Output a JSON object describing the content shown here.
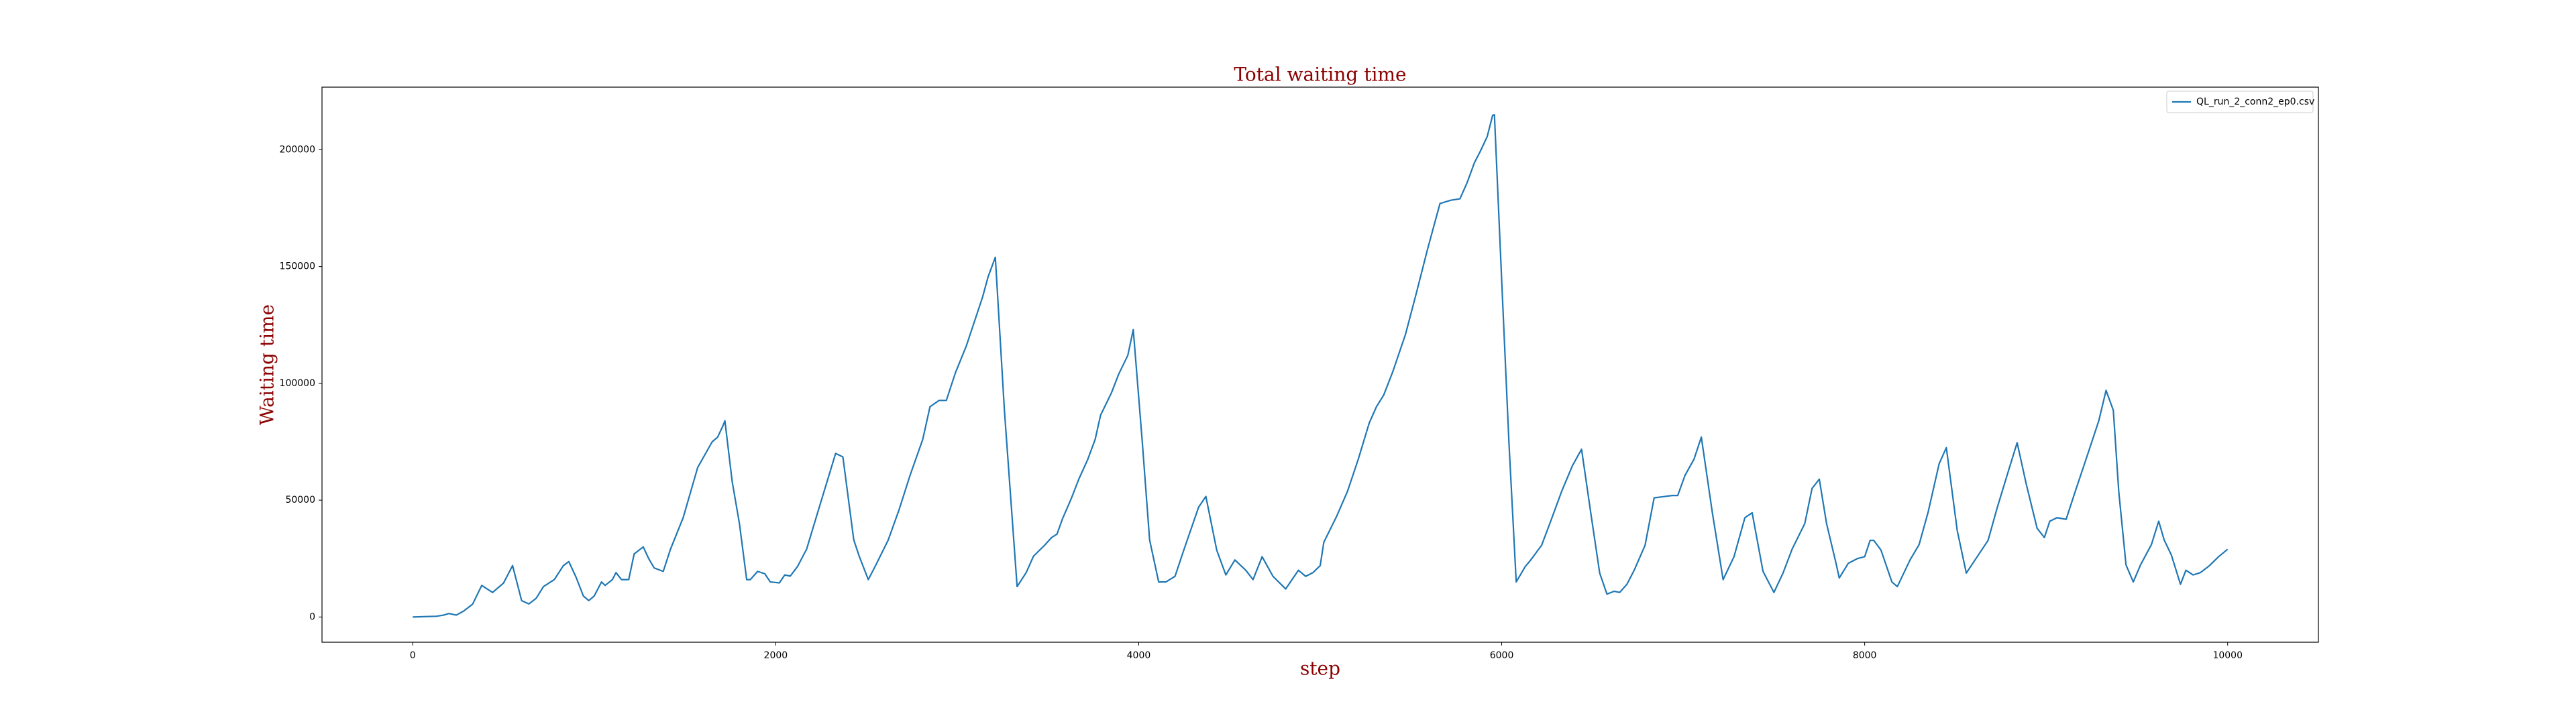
{
  "chart_data": {
    "type": "line",
    "title": "Total waiting time",
    "xlabel": "step",
    "ylabel": "Waiting time",
    "x": [
      0,
      130,
      170,
      200,
      240,
      280,
      330,
      380,
      440,
      500,
      550,
      600,
      640,
      680,
      720,
      780,
      830,
      860,
      900,
      940,
      970,
      1000,
      1040,
      1060,
      1100,
      1120,
      1150,
      1190,
      1220,
      1270,
      1300,
      1330,
      1380,
      1420,
      1490,
      1570,
      1650,
      1680,
      1710,
      1720,
      1760,
      1800,
      1840,
      1860,
      1900,
      1940,
      1970,
      2020,
      2050,
      2080,
      2120,
      2170,
      2240,
      2330,
      2370,
      2430,
      2460,
      2510,
      2550,
      2620,
      2680,
      2740,
      2810,
      2850,
      2900,
      2940,
      2990,
      3050,
      3110,
      3140,
      3170,
      3210,
      3260,
      3330,
      3380,
      3420,
      3480,
      3520,
      3550,
      3580,
      3630,
      3670,
      3720,
      3760,
      3790,
      3850,
      3890,
      3940,
      3970,
      4020,
      4060,
      4110,
      4150,
      4200,
      4250,
      4330,
      4370,
      4430,
      4480,
      4530,
      4590,
      4630,
      4680,
      4740,
      4810,
      4880,
      4920,
      4960,
      5000,
      5020,
      5090,
      5150,
      5210,
      5270,
      5310,
      5350,
      5400,
      5470,
      5530,
      5590,
      5660,
      5720,
      5770,
      5810,
      5850,
      5880,
      5920,
      5950,
      5960,
      6000,
      6040,
      6080,
      6130,
      6160,
      6220,
      6270,
      6330,
      6390,
      6440,
      6490,
      6540,
      6580,
      6620,
      6650,
      6690,
      6730,
      6790,
      6840,
      6900,
      6940,
      6970,
      7010,
      7060,
      7100,
      7160,
      7220,
      7280,
      7340,
      7380,
      7440,
      7500,
      7550,
      7600,
      7670,
      7710,
      7750,
      7790,
      7840,
      7860,
      7910,
      7960,
      8000,
      8030,
      8050,
      8090,
      8150,
      8180,
      8250,
      8300,
      8350,
      8410,
      8450,
      8510,
      8560,
      8620,
      8680,
      8730,
      8790,
      8840,
      8890,
      8950,
      8990,
      9020,
      9060,
      9110,
      9160,
      9220,
      9290,
      9330,
      9370,
      9400,
      9440,
      9480,
      9520,
      9580,
      9620,
      9650,
      9690,
      9740,
      9770,
      9810,
      9850,
      9900,
      9950,
      10000
    ],
    "series": [
      {
        "name": "QL_run_2_conn2_ep0.csv",
        "color": "#1f77b4",
        "values": [
          0,
          300,
          800,
          1500,
          800,
          2500,
          5500,
          13500,
          10500,
          14500,
          22000,
          7000,
          5600,
          8000,
          13000,
          16000,
          22000,
          23700,
          17000,
          9000,
          7000,
          9000,
          15000,
          13500,
          16000,
          19000,
          16000,
          16000,
          27000,
          30000,
          25000,
          21000,
          19500,
          29000,
          42500,
          64000,
          75000,
          77000,
          82000,
          84000,
          58000,
          40000,
          16000,
          16000,
          19500,
          18500,
          15000,
          14600,
          18000,
          17500,
          21600,
          29000,
          47000,
          70000,
          68500,
          33000,
          26000,
          16000,
          22000,
          33000,
          46000,
          60600,
          76000,
          90000,
          92700,
          92700,
          104500,
          116000,
          130000,
          137000,
          145600,
          154000,
          88500,
          13000,
          19000,
          26000,
          30600,
          34000,
          35500,
          42000,
          51000,
          59000,
          67600,
          76000,
          86400,
          96000,
          104000,
          112000,
          123000,
          74600,
          33000,
          15000,
          15000,
          17400,
          29000,
          47000,
          51600,
          28600,
          18000,
          24400,
          20000,
          16000,
          25800,
          17400,
          12000,
          20000,
          17400,
          19000,
          22000,
          32000,
          43000,
          53700,
          67600,
          83000,
          90000,
          95000,
          105000,
          121000,
          138700,
          157000,
          177000,
          178400,
          179000,
          186000,
          194500,
          199000,
          205600,
          214700,
          215000,
          144000,
          74600,
          15000,
          21600,
          24400,
          30700,
          41000,
          53700,
          64800,
          71800,
          45000,
          18800,
          9800,
          11000,
          10500,
          14000,
          20000,
          30700,
          51000,
          51600,
          52000,
          52000,
          60600,
          67600,
          77000,
          45000,
          16000,
          25800,
          42500,
          44600,
          19500,
          10500,
          18800,
          29000,
          40000,
          55000,
          59000,
          40000,
          23700,
          16700,
          23000,
          25000,
          25800,
          32800,
          32800,
          28600,
          15000,
          13000,
          24400,
          31000,
          45000,
          65500,
          72500,
          37000,
          18800,
          25800,
          32800,
          46700,
          62000,
          74600,
          57000,
          38000,
          34000,
          41000,
          42500,
          41800,
          53700,
          67600,
          84000,
          97000,
          88500,
          53700,
          22300,
          15000,
          22300,
          31000,
          41000,
          33000,
          26500,
          14000,
          20000,
          18000,
          19000,
          22000,
          25800,
          29000
        ]
      }
    ],
    "xlim": [
      -500,
      10500
    ],
    "xticks": [
      0,
      2000,
      4000,
      6000,
      8000,
      10000
    ],
    "ylim": [
      -10800,
      226800
    ],
    "yticks": [
      0,
      50000,
      100000,
      150000,
      200000
    ],
    "legend": "upper right"
  }
}
